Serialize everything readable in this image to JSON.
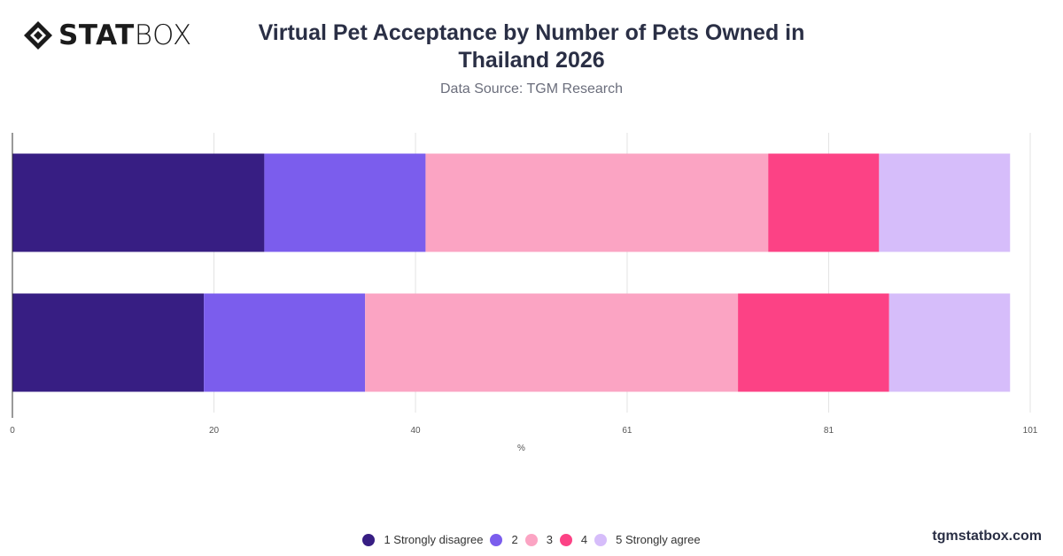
{
  "brand": {
    "logo_bold": "STAT",
    "logo_thin": "BOX",
    "footer": "tgmstatbox.com"
  },
  "chart_data": {
    "type": "bar",
    "orientation": "horizontal",
    "stacked": true,
    "title": "Virtual Pet Acceptance by Number of Pets Owned in Thailand 2026",
    "subtitle": "Data Source: TGM Research",
    "xlabel": "%",
    "ylabel": "",
    "xlim": [
      0,
      101
    ],
    "x_ticks": [
      0,
      20,
      40,
      61,
      81,
      101
    ],
    "categories": [
      "",
      ""
    ],
    "series": [
      {
        "name": "1 Strongly disagree",
        "color": "#371e83",
        "values": [
          25,
          19
        ]
      },
      {
        "name": "2",
        "color": "#7b5ded",
        "values": [
          16,
          16
        ]
      },
      {
        "name": "3",
        "color": "#fba4c3",
        "values": [
          34,
          37
        ]
      },
      {
        "name": "4",
        "color": "#fc4285",
        "values": [
          11,
          15
        ]
      },
      {
        "name": "5 Strongly agree",
        "color": "#d6bdfa",
        "values": [
          13,
          12
        ]
      }
    ],
    "grid": true,
    "legend_position": "bottom"
  }
}
